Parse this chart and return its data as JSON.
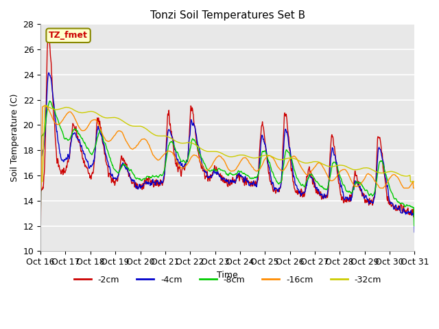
{
  "title": "Tonzi Soil Temperatures Set B",
  "xlabel": "Time",
  "ylabel": "Soil Temperature (C)",
  "ylim": [
    10,
    28
  ],
  "xlim": [
    0,
    960
  ],
  "x_tick_labels": [
    "Oct 16",
    "Oct 17",
    "Oct 18",
    "Oct 19",
    "Oct 20",
    "Oct 21",
    "Oct 22",
    "Oct 23",
    "Oct 24",
    "Oct 25",
    "Oct 26",
    "Oct 27",
    "Oct 28",
    "Oct 29",
    "Oct 30",
    "Oct 31"
  ],
  "x_tick_positions": [
    0,
    64,
    128,
    192,
    256,
    320,
    384,
    448,
    512,
    576,
    640,
    704,
    768,
    832,
    896,
    960
  ],
  "series_colors": [
    "#cc0000",
    "#0000cc",
    "#00cc00",
    "#ff8c00",
    "#cccc00"
  ],
  "series_labels": [
    "-2cm",
    "-4cm",
    "-8cm",
    "-16cm",
    "-32cm"
  ],
  "annotation_text": "TZ_fmet",
  "annotation_color": "#cc0000",
  "annotation_bg": "#ffffcc",
  "annotation_border": "#888800"
}
